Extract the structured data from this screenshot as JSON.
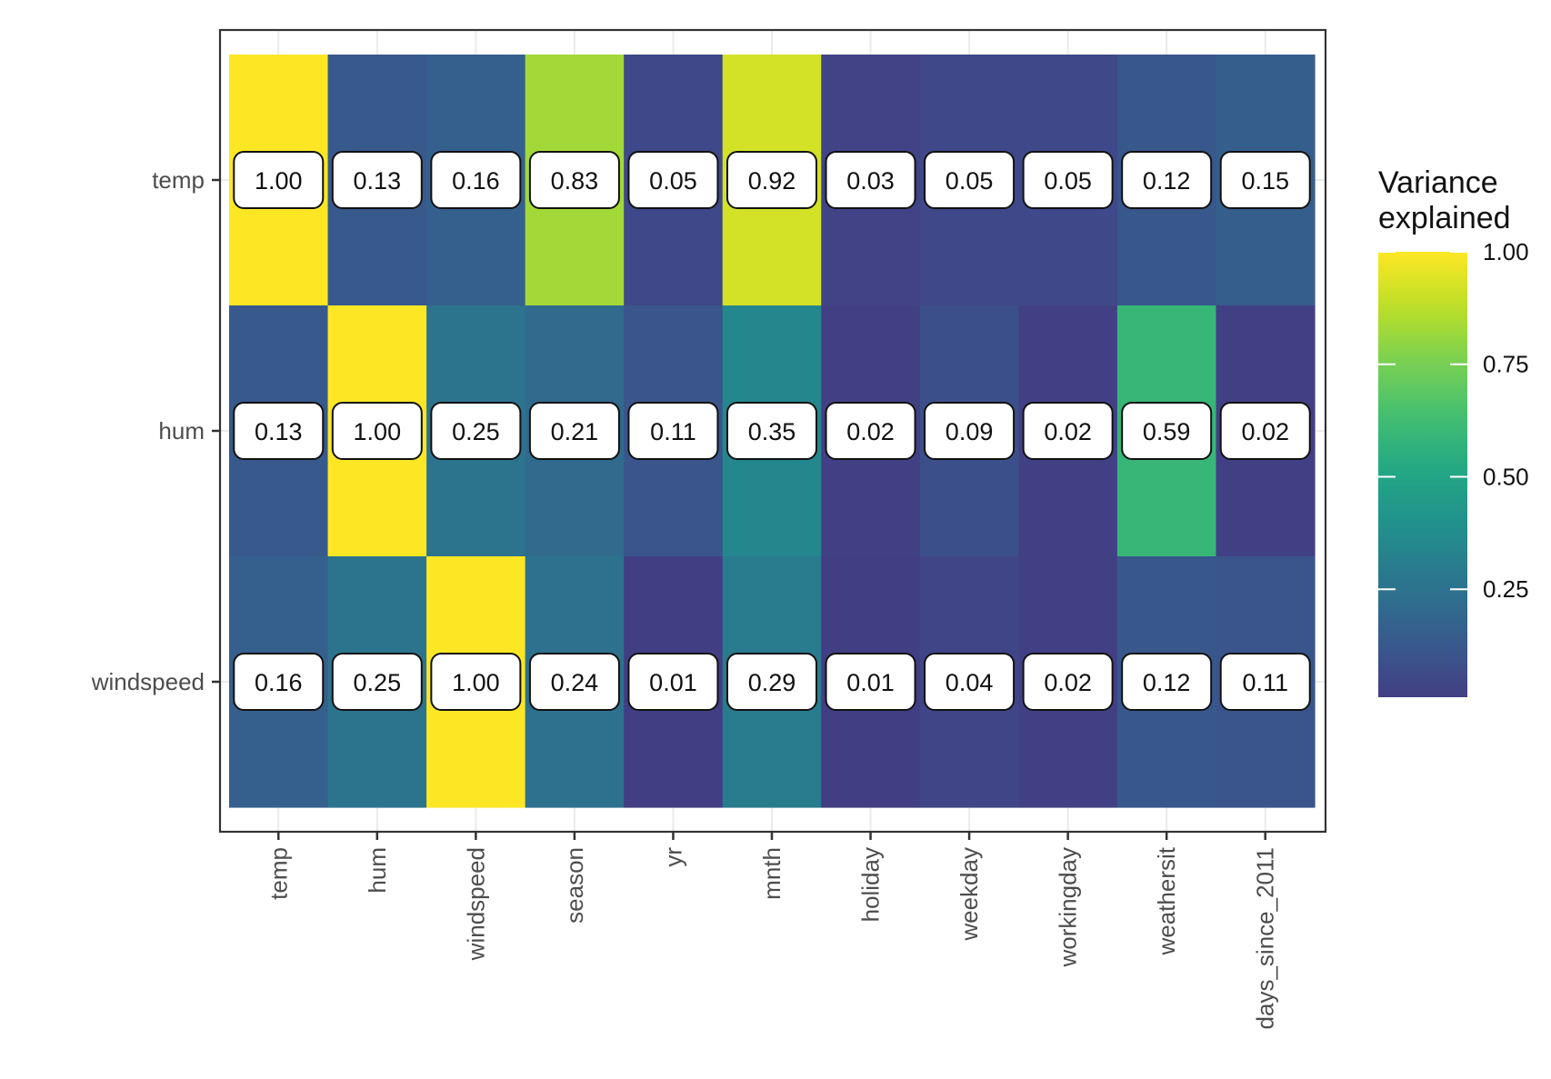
{
  "chart_data": {
    "type": "heatmap",
    "title": "",
    "xlabel": "",
    "ylabel": "",
    "x": [
      "temp",
      "hum",
      "windspeed",
      "season",
      "yr",
      "mnth",
      "holiday",
      "weekday",
      "workingday",
      "weathersit",
      "days_since_2011"
    ],
    "y": [
      "temp",
      "hum",
      "windspeed"
    ],
    "values": [
      [
        1.0,
        0.13,
        0.16,
        0.83,
        0.05,
        0.92,
        0.03,
        0.05,
        0.05,
        0.12,
        0.15
      ],
      [
        0.13,
        1.0,
        0.25,
        0.21,
        0.11,
        0.35,
        0.02,
        0.09,
        0.02,
        0.59,
        0.02
      ],
      [
        0.16,
        0.25,
        1.0,
        0.24,
        0.01,
        0.29,
        0.01,
        0.04,
        0.02,
        0.12,
        0.11
      ]
    ],
    "value_labels": [
      [
        "1.00",
        "0.13",
        "0.16",
        "0.83",
        "0.05",
        "0.92",
        "0.03",
        "0.05",
        "0.05",
        "0.12",
        "0.15"
      ],
      [
        "0.13",
        "1.00",
        "0.25",
        "0.21",
        "0.11",
        "0.35",
        "0.02",
        "0.09",
        "0.02",
        "0.59",
        "0.02"
      ],
      [
        "0.16",
        "0.25",
        "1.00",
        "0.24",
        "0.01",
        "0.29",
        "0.01",
        "0.04",
        "0.02",
        "0.12",
        "0.11"
      ]
    ],
    "legend": {
      "title_lines": [
        "Variance",
        "explained"
      ],
      "position": "right",
      "ticks": [
        1.0,
        0.75,
        0.5,
        0.25
      ],
      "tick_labels": [
        "1.00",
        "0.75",
        "0.50",
        "0.25"
      ],
      "range": [
        0.01,
        1.0
      ]
    },
    "colorscale": "viridis",
    "grid": true
  }
}
